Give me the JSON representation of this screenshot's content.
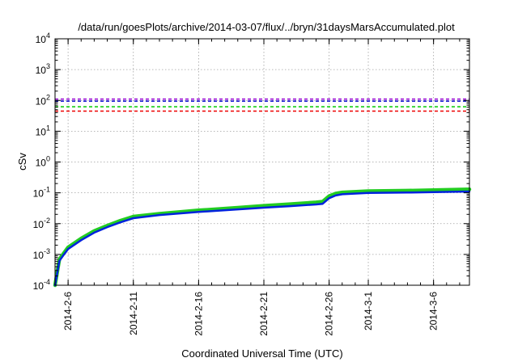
{
  "chart_data": {
    "type": "line",
    "title": "/data/run/goesPlots/archive/2014-03-07/flux/../bryn/31daysMarsAccumulated.plot",
    "xlabel": "Coordinated Universal Time (UTC)",
    "ylabel": "cSv",
    "yscale": "log",
    "ylim": [
      0.0001,
      10000
    ],
    "xlim": [
      "2014-02-05",
      "2014-03-08 18:00"
    ],
    "grid": true,
    "y_ticks": [
      {
        "exp": "-4",
        "value": 0.0001
      },
      {
        "exp": "-3",
        "value": 0.001
      },
      {
        "exp": "-2",
        "value": 0.01
      },
      {
        "exp": "-1",
        "value": 0.1
      },
      {
        "exp": "0",
        "value": 1
      },
      {
        "exp": "1",
        "value": 10
      },
      {
        "exp": "2",
        "value": 100
      },
      {
        "exp": "3",
        "value": 1000
      },
      {
        "exp": "4",
        "value": 10000
      }
    ],
    "y_tick_base": "10",
    "x_ticks": [
      {
        "label": "2014-2-6",
        "value": "2014-02-06"
      },
      {
        "label": "2014-2-11",
        "value": "2014-02-11"
      },
      {
        "label": "2014-2-16",
        "value": "2014-02-16"
      },
      {
        "label": "2014-2-21",
        "value": "2014-02-21"
      },
      {
        "label": "2014-2-26",
        "value": "2014-02-26"
      },
      {
        "label": "2014-3-1",
        "value": "2014-03-01"
      },
      {
        "label": "2014-3-6",
        "value": "2014-03-06"
      }
    ],
    "hlines": [
      {
        "value": 110,
        "color": "#9400d3"
      },
      {
        "value": 95,
        "color": "#0000cd"
      },
      {
        "value": 62,
        "color": "#00cc00"
      },
      {
        "value": 45,
        "color": "#ee0000"
      }
    ],
    "series": [
      {
        "color": "#22cc22",
        "x": [
          "2014-02-05",
          "2014-02-05 08:00",
          "2014-02-05 16:00",
          "2014-02-06",
          "2014-02-07",
          "2014-02-08",
          "2014-02-09",
          "2014-02-10",
          "2014-02-11",
          "2014-02-13",
          "2014-02-16",
          "2014-02-19",
          "2014-02-21",
          "2014-02-23",
          "2014-02-25",
          "2014-02-25 12:00",
          "2014-02-26",
          "2014-02-26 12:00",
          "2014-02-27",
          "2014-03-01",
          "2014-03-04",
          "2014-03-06",
          "2014-03-08 18:00"
        ],
        "y": [
          0.0001,
          0.0007,
          0.0011,
          0.0017,
          0.0033,
          0.0058,
          0.0086,
          0.0125,
          0.017,
          0.021,
          0.027,
          0.033,
          0.038,
          0.043,
          0.049,
          0.052,
          0.078,
          0.095,
          0.103,
          0.114,
          0.118,
          0.122,
          0.13
        ]
      },
      {
        "color": "#0022dd",
        "x": [
          "2014-02-05",
          "2014-02-05 08:00",
          "2014-02-05 16:00",
          "2014-02-06",
          "2014-02-07",
          "2014-02-08",
          "2014-02-09",
          "2014-02-10",
          "2014-02-11",
          "2014-02-13",
          "2014-02-16",
          "2014-02-19",
          "2014-02-21",
          "2014-02-23",
          "2014-02-25",
          "2014-02-25 12:00",
          "2014-02-26",
          "2014-02-26 12:00",
          "2014-02-27",
          "2014-03-01",
          "2014-03-04",
          "2014-03-06",
          "2014-03-08 18:00"
        ],
        "y": [
          0.0001,
          0.00062,
          0.00098,
          0.0015,
          0.0029,
          0.0051,
          0.0077,
          0.011,
          0.015,
          0.019,
          0.024,
          0.029,
          0.033,
          0.037,
          0.042,
          0.044,
          0.067,
          0.082,
          0.09,
          0.099,
          0.102,
          0.105,
          0.11
        ]
      }
    ]
  }
}
